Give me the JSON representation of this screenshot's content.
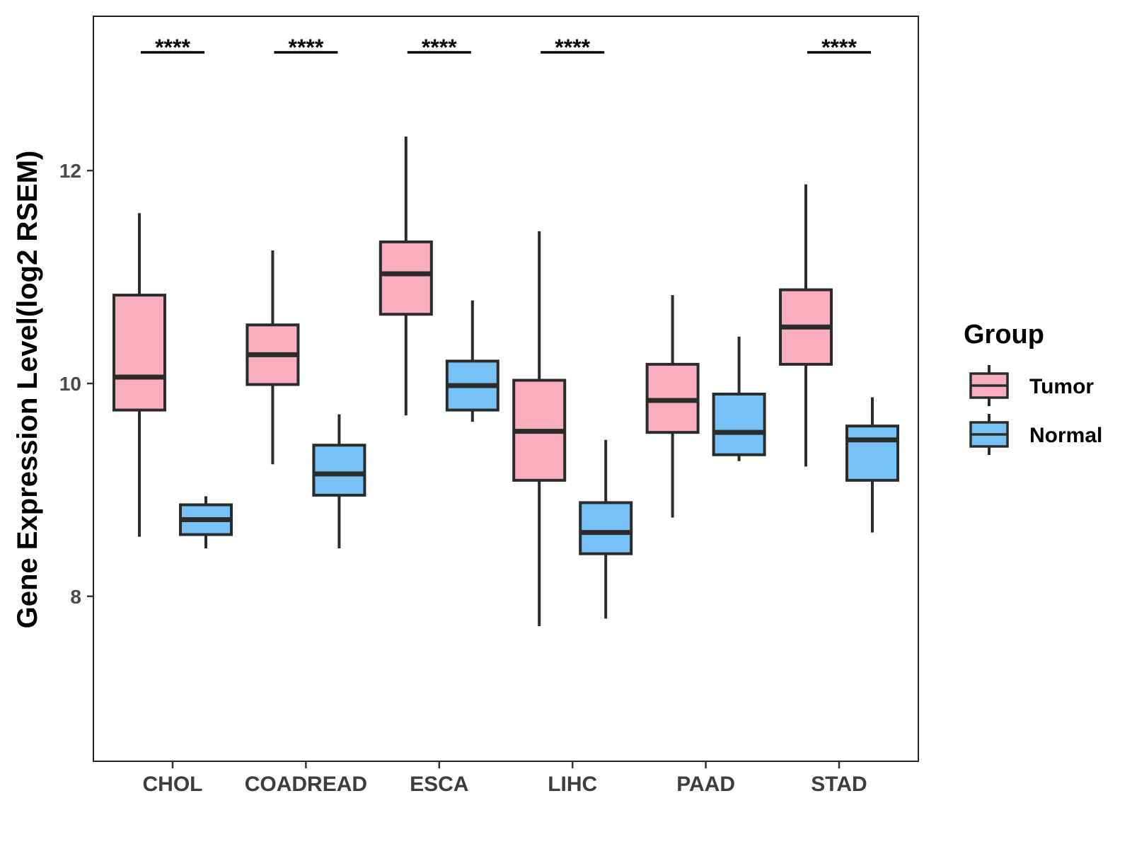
{
  "chart_data": {
    "type": "boxplot",
    "title": "",
    "xlabel": "",
    "ylabel": "Gene Expression Level(log2 RSEM)",
    "ylim": [
      6.45,
      13.45
    ],
    "yticks": [
      8,
      10,
      12
    ],
    "categories": [
      "CHOL",
      "COADREAD",
      "ESCA",
      "LIHC",
      "PAAD",
      "STAD"
    ],
    "legend": {
      "title": "Group",
      "position": "right",
      "entries": [
        "Tumor",
        "Normal"
      ]
    },
    "series": [
      {
        "name": "Tumor",
        "color": "#f9aec0",
        "boxes": [
          {
            "min": 8.56,
            "q1": 9.75,
            "median": 10.06,
            "q3": 10.83,
            "max": 11.6
          },
          {
            "min": 9.24,
            "q1": 9.99,
            "median": 10.27,
            "q3": 10.55,
            "max": 11.25
          },
          {
            "min": 9.7,
            "q1": 10.65,
            "median": 11.03,
            "q3": 11.33,
            "max": 12.32
          },
          {
            "min": 7.72,
            "q1": 9.09,
            "median": 9.55,
            "q3": 10.03,
            "max": 11.43
          },
          {
            "min": 8.74,
            "q1": 9.54,
            "median": 9.84,
            "q3": 10.18,
            "max": 10.83
          },
          {
            "min": 9.22,
            "q1": 10.18,
            "median": 10.53,
            "q3": 10.88,
            "max": 11.87
          }
        ]
      },
      {
        "name": "Normal",
        "color": "#77c1f7",
        "boxes": [
          {
            "min": 8.45,
            "q1": 8.58,
            "median": 8.72,
            "q3": 8.86,
            "max": 8.94
          },
          {
            "min": 8.45,
            "q1": 8.95,
            "median": 9.15,
            "q3": 9.42,
            "max": 9.71
          },
          {
            "min": 9.64,
            "q1": 9.75,
            "median": 9.98,
            "q3": 10.21,
            "max": 10.78
          },
          {
            "min": 7.79,
            "q1": 8.4,
            "median": 8.6,
            "q3": 8.88,
            "max": 9.47
          },
          {
            "min": 9.27,
            "q1": 9.33,
            "median": 9.54,
            "q3": 9.9,
            "max": 10.44
          },
          {
            "min": 8.6,
            "q1": 9.09,
            "median": 9.47,
            "q3": 9.6,
            "max": 9.87
          }
        ]
      }
    ],
    "annotations": [
      {
        "category": "CHOL",
        "label": "****"
      },
      {
        "category": "COADREAD",
        "label": "****"
      },
      {
        "category": "ESCA",
        "label": "****"
      },
      {
        "category": "LIHC",
        "label": "****"
      },
      {
        "category": "STAD",
        "label": "****"
      }
    ],
    "grid": false
  }
}
